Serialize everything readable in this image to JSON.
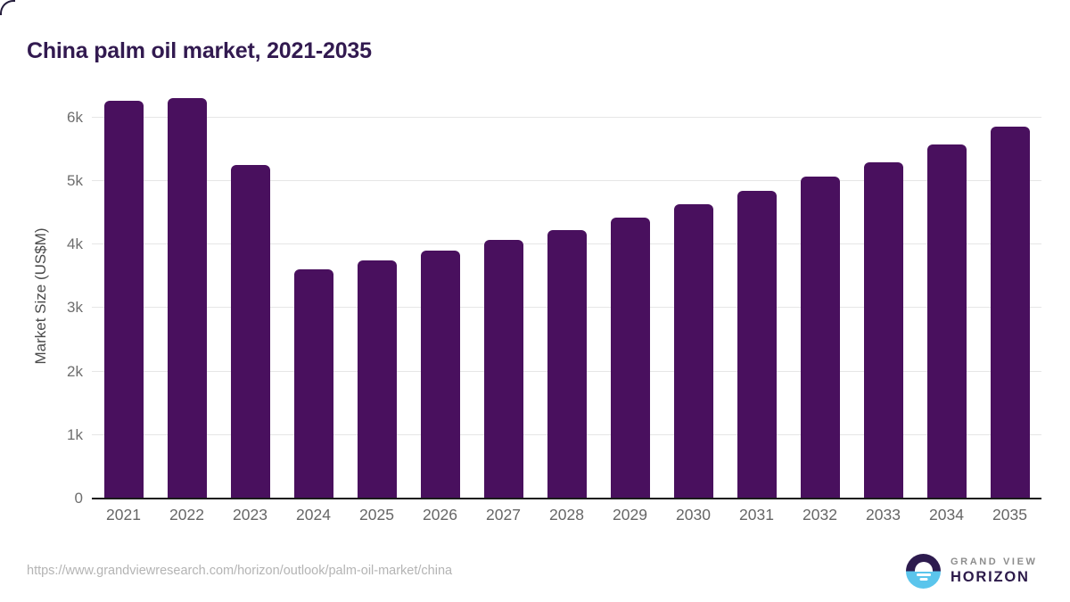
{
  "page": {
    "title": "China palm oil market, 2021-2035"
  },
  "chart_data": {
    "type": "bar",
    "title": "China palm oil market, 2021-2035",
    "xlabel": "",
    "ylabel": "Market Size (US$M)",
    "categories": [
      "2021",
      "2022",
      "2023",
      "2024",
      "2025",
      "2026",
      "2027",
      "2028",
      "2029",
      "2030",
      "2031",
      "2032",
      "2033",
      "2034",
      "2035"
    ],
    "values": [
      6270,
      6300,
      5250,
      3610,
      3745,
      3900,
      4070,
      4230,
      4420,
      4630,
      4840,
      5070,
      5300,
      5570,
      5860
    ],
    "ylim": [
      0,
      6500
    ],
    "yticks": [
      {
        "value": 0,
        "label": "0"
      },
      {
        "value": 1000,
        "label": "1k"
      },
      {
        "value": 2000,
        "label": "2k"
      },
      {
        "value": 3000,
        "label": "3k"
      },
      {
        "value": 4000,
        "label": "4k"
      },
      {
        "value": 5000,
        "label": "5k"
      },
      {
        "value": 6000,
        "label": "6k"
      }
    ],
    "grid": true,
    "legend": false
  },
  "footer": {
    "source_url": "https://www.grandviewresearch.com/horizon/outlook/palm-oil-market/china",
    "logo": {
      "top": "GRAND VIEW",
      "bottom": "HORIZON"
    }
  },
  "colors": {
    "bar": "#49105e",
    "title": "#321a50",
    "tick_label": "#666666",
    "axis_title": "#4b4b4b",
    "gridline": "#e6e6e6",
    "axis_line": "#1a1a1a",
    "source_text": "#b4b4b4",
    "logo_navy": "#2d1b4e",
    "logo_blue": "#5bc5ec",
    "logo_gray": "#8d8d8d"
  }
}
